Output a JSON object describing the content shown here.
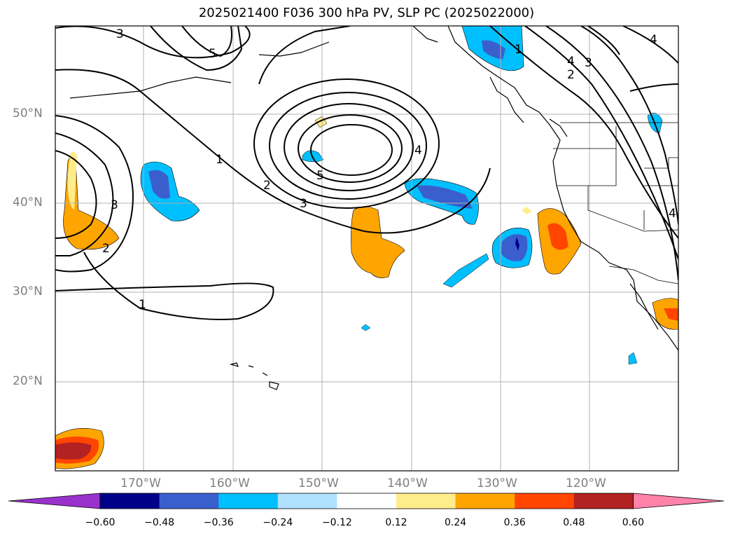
{
  "title": "2025021400 F036 300 hPa PV, SLP PC (2025022000)",
  "map": {
    "lat_labels": [
      "50°N",
      "40°N",
      "30°N",
      "20°N"
    ],
    "lon_labels": [
      "170°W",
      "160°W",
      "150°W",
      "140°W",
      "130°W",
      "120°W"
    ],
    "contour_labels": [
      "3",
      "5",
      "1",
      "2",
      "4",
      "5",
      "3",
      "1",
      "2",
      "3",
      "4",
      "2",
      "1",
      "3",
      "4",
      "4"
    ]
  },
  "colorbar": {
    "tick_labels": [
      "−0.60",
      "−0.48",
      "−0.36",
      "−0.24",
      "−0.12",
      "0.12",
      "0.24",
      "0.36",
      "0.48",
      "0.60"
    ],
    "colors": [
      "#9932cc",
      "#00008b",
      "#3a5fcd",
      "#00bfff",
      "#b0e2ff",
      "#ffffff",
      "#ffec8b",
      "#ffa500",
      "#ff4500",
      "#b22222",
      "#ff82ab"
    ]
  }
}
